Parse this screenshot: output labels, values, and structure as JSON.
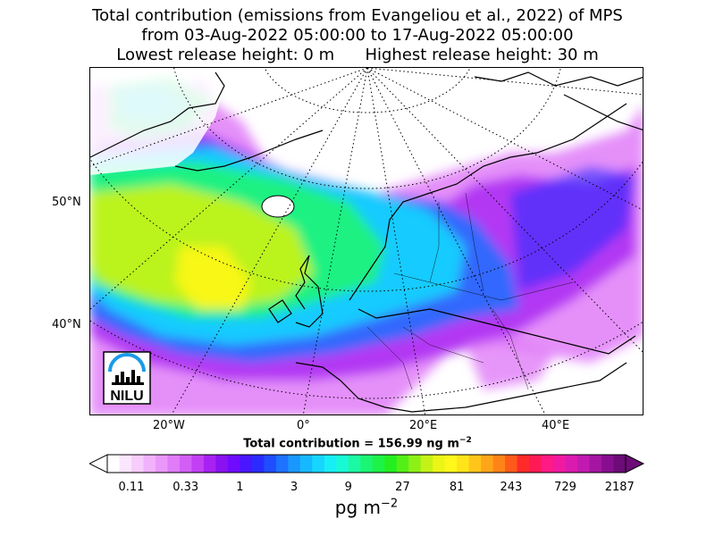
{
  "title": {
    "line1": "Total contribution (emissions from Evangeliou et al., 2022) of MPS",
    "line2": "from 03-Aug-2022 05:00:00 to 17-Aug-2022 05:00:00",
    "line3": "Lowest release height: 0 m      Highest release height: 30 m"
  },
  "map": {
    "lat_labels": [
      "50°N",
      "40°N"
    ],
    "lon_labels": [
      "20°W",
      "0°",
      "20°E",
      "40°E"
    ],
    "logo_text": "NILU"
  },
  "total_contribution": "Total contribution = 156.99 ng m",
  "total_contribution_exp": "−2",
  "colorbar": {
    "ticks": [
      "0.11",
      "0.33",
      "1",
      "3",
      "9",
      "27",
      "81",
      "243",
      "729",
      "2187"
    ],
    "unit_base": "pg m",
    "unit_exp": "−2",
    "colors": [
      "#ffffff",
      "#fce6ff",
      "#f7cdfc",
      "#f1b2fb",
      "#ea97fa",
      "#e07cf8",
      "#d35ef6",
      "#c23ff4",
      "#a722f2",
      "#8a12f0",
      "#6f0bff",
      "#4a16ff",
      "#2a2bff",
      "#1f4dff",
      "#1d72ff",
      "#1a97ff",
      "#16b9ff",
      "#16d6ff",
      "#18eef6",
      "#19f9d6",
      "#1bf9a4",
      "#1bf574",
      "#1df247",
      "#23ef1f",
      "#54ef17",
      "#8ef017",
      "#c4f216",
      "#ebf516",
      "#fff71a",
      "#ffe41a",
      "#ffc51a",
      "#ffa51a",
      "#ff8417",
      "#ff5a1a",
      "#ff2a2a",
      "#ff1a55",
      "#ff1a85",
      "#f01aa0",
      "#db1ab0",
      "#c21ab0",
      "#a515a2",
      "#870f8f",
      "#6d0b78"
    ]
  }
}
